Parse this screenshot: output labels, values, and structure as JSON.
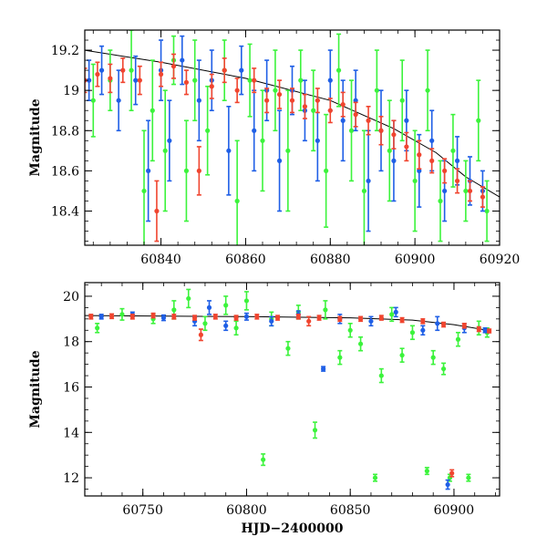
{
  "chart_data": [
    {
      "type": "scatter",
      "panel": "top",
      "title": "",
      "xlabel": "",
      "ylabel": "Magnitude",
      "xlim": [
        60822,
        60920
      ],
      "ylim": [
        19.3,
        18.23
      ],
      "y_inverted": true,
      "grid": false,
      "error_bars": true,
      "xticks": [
        60840,
        60860,
        60880,
        60900,
        60920
      ],
      "yticks": [
        18.4,
        18.6,
        18.8,
        19,
        19.2
      ],
      "model_curve": {
        "color": "#000000",
        "x": [
          60822,
          60840,
          60860,
          60880,
          60895,
          60905,
          60912,
          60920
        ],
        "y": [
          19.2,
          19.14,
          19.06,
          18.95,
          18.81,
          18.69,
          18.57,
          18.47
        ]
      },
      "series": [
        {
          "color": "#3cf33c",
          "points": [
            [
              60824,
              18.95,
              0.18
            ],
            [
              60828,
              19.05,
              0.15
            ],
            [
              60833,
              19.1,
              0.2
            ],
            [
              60836,
              18.5,
              0.3
            ],
            [
              60838,
              18.9,
              0.25
            ],
            [
              60841,
              18.7,
              0.3
            ],
            [
              60843,
              19.15,
              0.12
            ],
            [
              60846,
              18.6,
              0.25
            ],
            [
              60848,
              19.05,
              0.2
            ],
            [
              60851,
              18.8,
              0.22
            ],
            [
              60855,
              19.1,
              0.15
            ],
            [
              60858,
              18.45,
              0.3
            ],
            [
              60861,
              19.05,
              0.18
            ],
            [
              60864,
              18.75,
              0.25
            ],
            [
              60867,
              19.0,
              0.2
            ],
            [
              60870,
              18.7,
              0.3
            ],
            [
              60873,
              19.05,
              0.15
            ],
            [
              60876,
              18.9,
              0.2
            ],
            [
              60879,
              18.6,
              0.28
            ],
            [
              60882,
              19.1,
              0.18
            ],
            [
              60885,
              18.8,
              0.25
            ],
            [
              60888,
              18.5,
              0.3
            ],
            [
              60891,
              19.0,
              0.2
            ],
            [
              60894,
              18.7,
              0.25
            ],
            [
              60897,
              18.95,
              0.2
            ],
            [
              60900,
              18.55,
              0.25
            ],
            [
              60903,
              19.0,
              0.2
            ],
            [
              60906,
              18.45,
              0.2
            ],
            [
              60909,
              18.7,
              0.18
            ],
            [
              60912,
              18.5,
              0.15
            ],
            [
              60915,
              18.85,
              0.2
            ],
            [
              60917,
              18.4,
              0.15
            ]
          ]
        },
        {
          "color": "#1f5fe6",
          "points": [
            [
              60823,
              19.05,
              0.1
            ],
            [
              60826,
              19.1,
              0.12
            ],
            [
              60830,
              18.95,
              0.15
            ],
            [
              60834,
              19.05,
              0.12
            ],
            [
              60837,
              18.6,
              0.25
            ],
            [
              60840,
              19.1,
              0.15
            ],
            [
              60842,
              18.75,
              0.2
            ],
            [
              60845,
              19.15,
              0.12
            ],
            [
              60849,
              18.95,
              0.2
            ],
            [
              60852,
              19.05,
              0.15
            ],
            [
              60856,
              18.7,
              0.22
            ],
            [
              60859,
              19.1,
              0.12
            ],
            [
              60862,
              18.8,
              0.2
            ],
            [
              60865,
              19.0,
              0.15
            ],
            [
              60868,
              18.65,
              0.25
            ],
            [
              60871,
              19.0,
              0.12
            ],
            [
              60874,
              18.9,
              0.15
            ],
            [
              60877,
              18.75,
              0.2
            ],
            [
              60880,
              19.05,
              0.15
            ],
            [
              60883,
              18.85,
              0.2
            ],
            [
              60886,
              18.95,
              0.15
            ],
            [
              60889,
              18.55,
              0.25
            ],
            [
              60892,
              18.8,
              0.2
            ],
            [
              60895,
              18.65,
              0.2
            ],
            [
              60898,
              18.85,
              0.15
            ],
            [
              60901,
              18.6,
              0.18
            ],
            [
              60904,
              18.75,
              0.15
            ],
            [
              60907,
              18.5,
              0.15
            ],
            [
              60910,
              18.65,
              0.12
            ],
            [
              60913,
              18.55,
              0.12
            ],
            [
              60916,
              18.5,
              0.1
            ]
          ]
        },
        {
          "color": "#f0452f",
          "points": [
            [
              60822,
              19.05,
              0.06
            ],
            [
              60825,
              19.08,
              0.06
            ],
            [
              60828,
              19.06,
              0.07
            ],
            [
              60831,
              19.1,
              0.06
            ],
            [
              60835,
              19.05,
              0.07
            ],
            [
              60839,
              18.4,
              0.15
            ],
            [
              60840,
              19.08,
              0.06
            ],
            [
              60843,
              19.12,
              0.06
            ],
            [
              60846,
              19.04,
              0.06
            ],
            [
              60849,
              18.6,
              0.12
            ],
            [
              60852,
              19.02,
              0.06
            ],
            [
              60855,
              19.1,
              0.06
            ],
            [
              60858,
              19.0,
              0.06
            ],
            [
              60862,
              19.05,
              0.06
            ],
            [
              60865,
              18.95,
              0.06
            ],
            [
              60868,
              18.98,
              0.07
            ],
            [
              60871,
              18.95,
              0.06
            ],
            [
              60874,
              18.92,
              0.06
            ],
            [
              60877,
              18.95,
              0.06
            ],
            [
              60880,
              18.9,
              0.06
            ],
            [
              60883,
              18.93,
              0.06
            ],
            [
              60886,
              18.88,
              0.06
            ],
            [
              60889,
              18.85,
              0.07
            ],
            [
              60892,
              18.8,
              0.07
            ],
            [
              60895,
              18.78,
              0.07
            ],
            [
              60898,
              18.72,
              0.07
            ],
            [
              60901,
              18.68,
              0.07
            ],
            [
              60904,
              18.65,
              0.06
            ],
            [
              60907,
              18.6,
              0.06
            ],
            [
              60910,
              18.55,
              0.06
            ],
            [
              60913,
              18.5,
              0.05
            ],
            [
              60916,
              18.47,
              0.05
            ]
          ]
        }
      ]
    },
    {
      "type": "scatter",
      "panel": "bottom",
      "title": "",
      "xlabel": "HJD−2400000",
      "ylabel": "Magnitude",
      "xlim": [
        60722,
        60922
      ],
      "ylim": [
        20.6,
        11.2
      ],
      "y_inverted": true,
      "grid": false,
      "error_bars": true,
      "xticks": [
        60750,
        60800,
        60850,
        60900
      ],
      "yticks": [
        12,
        14,
        16,
        18,
        20
      ],
      "model_curve": {
        "color": "#000000",
        "x": [
          60722,
          60800,
          60850,
          60880,
          60900,
          60918
        ],
        "y": [
          19.15,
          19.1,
          19.05,
          18.95,
          18.75,
          18.47
        ]
      },
      "series": [
        {
          "color": "#3cf33c",
          "points": [
            [
              60728,
              18.6,
              0.2
            ],
            [
              60740,
              19.2,
              0.25
            ],
            [
              60755,
              19.0,
              0.2
            ],
            [
              60765,
              19.4,
              0.4
            ],
            [
              60772,
              19.9,
              0.4
            ],
            [
              60780,
              18.8,
              0.3
            ],
            [
              60790,
              19.6,
              0.4
            ],
            [
              60795,
              18.6,
              0.3
            ],
            [
              60800,
              19.8,
              0.4
            ],
            [
              60808,
              12.8,
              0.25
            ],
            [
              60812,
              19.0,
              0.3
            ],
            [
              60820,
              17.7,
              0.3
            ],
            [
              60825,
              19.3,
              0.3
            ],
            [
              60833,
              14.1,
              0.35
            ],
            [
              60838,
              19.4,
              0.4
            ],
            [
              60845,
              17.3,
              0.3
            ],
            [
              60850,
              18.5,
              0.3
            ],
            [
              60855,
              17.9,
              0.3
            ],
            [
              60862,
              12.0,
              0.15
            ],
            [
              60865,
              16.5,
              0.3
            ],
            [
              60870,
              19.2,
              0.3
            ],
            [
              60875,
              17.4,
              0.3
            ],
            [
              60880,
              18.4,
              0.3
            ],
            [
              60887,
              12.3,
              0.15
            ],
            [
              60890,
              17.3,
              0.3
            ],
            [
              60895,
              16.8,
              0.25
            ],
            [
              60898,
              12.0,
              0.15
            ],
            [
              60902,
              18.1,
              0.3
            ],
            [
              60907,
              12.0,
              0.15
            ],
            [
              60912,
              18.6,
              0.3
            ],
            [
              60916,
              18.4,
              0.2
            ]
          ]
        },
        {
          "color": "#1f5fe6",
          "points": [
            [
              60730,
              19.1,
              0.1
            ],
            [
              60745,
              19.2,
              0.1
            ],
            [
              60760,
              19.05,
              0.12
            ],
            [
              60775,
              18.9,
              0.2
            ],
            [
              60782,
              19.5,
              0.3
            ],
            [
              60790,
              18.7,
              0.2
            ],
            [
              60800,
              19.1,
              0.15
            ],
            [
              60812,
              18.9,
              0.2
            ],
            [
              60825,
              19.2,
              0.15
            ],
            [
              60837,
              16.8,
              0.1
            ],
            [
              60845,
              19.0,
              0.2
            ],
            [
              60860,
              18.9,
              0.2
            ],
            [
              60872,
              19.3,
              0.2
            ],
            [
              60885,
              18.5,
              0.2
            ],
            [
              60892,
              18.8,
              0.3
            ],
            [
              60897,
              11.7,
              0.2
            ],
            [
              60905,
              18.6,
              0.2
            ],
            [
              60915,
              18.5,
              0.1
            ]
          ]
        },
        {
          "color": "#f0452f",
          "points": [
            [
              60725,
              19.1,
              0.1
            ],
            [
              60735,
              19.12,
              0.1
            ],
            [
              60745,
              19.1,
              0.1
            ],
            [
              60755,
              19.15,
              0.1
            ],
            [
              60765,
              19.1,
              0.1
            ],
            [
              60775,
              19.05,
              0.1
            ],
            [
              60778,
              18.3,
              0.25
            ],
            [
              60785,
              19.1,
              0.1
            ],
            [
              60795,
              19.05,
              0.1
            ],
            [
              60805,
              19.1,
              0.1
            ],
            [
              60815,
              19.05,
              0.1
            ],
            [
              60825,
              19.1,
              0.1
            ],
            [
              60830,
              18.9,
              0.2
            ],
            [
              60835,
              19.05,
              0.1
            ],
            [
              60845,
              19.0,
              0.1
            ],
            [
              60855,
              19.0,
              0.1
            ],
            [
              60865,
              19.05,
              0.1
            ],
            [
              60875,
              18.95,
              0.1
            ],
            [
              60885,
              18.9,
              0.1
            ],
            [
              60895,
              18.75,
              0.1
            ],
            [
              60899,
              12.2,
              0.15
            ],
            [
              60905,
              18.7,
              0.1
            ],
            [
              60912,
              18.55,
              0.1
            ],
            [
              60917,
              18.47,
              0.08
            ]
          ]
        }
      ]
    }
  ]
}
